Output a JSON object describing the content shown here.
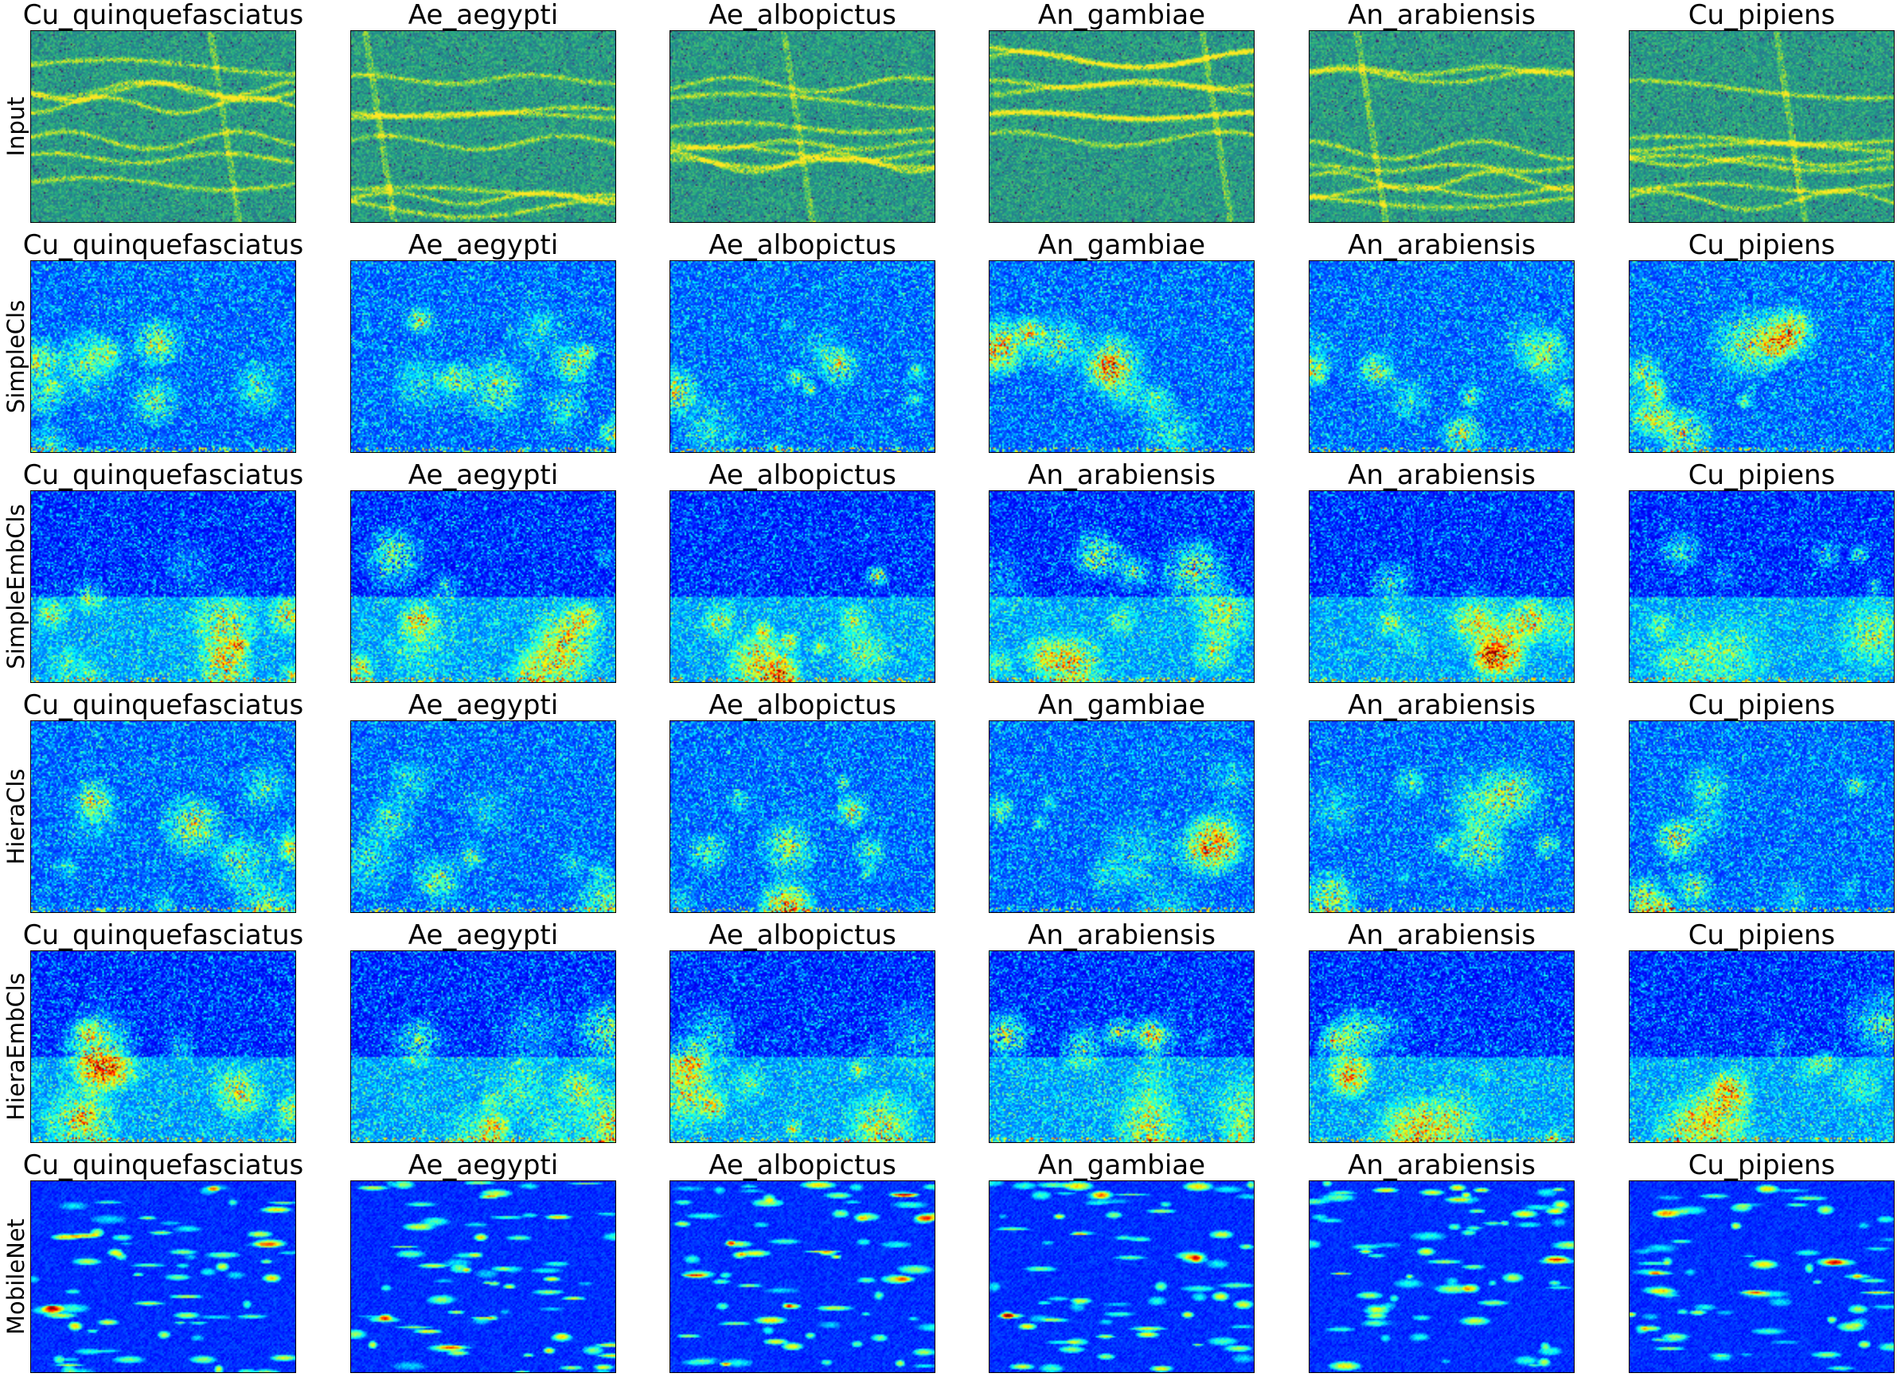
{
  "figure": {
    "rows": [
      {
        "label": "Input",
        "style": "spectrogram",
        "titles": [
          "Cu_quinquefasciatus",
          "Ae_aegypti",
          "Ae_albopictus",
          "An_gambiae",
          "An_arabiensis",
          "Cu_pipiens"
        ]
      },
      {
        "label": "SimpleCls",
        "style": "saliency",
        "titles": [
          "Cu_quinquefasciatus",
          "Ae_aegypti",
          "Ae_albopictus",
          "An_gambiae",
          "An_arabiensis",
          "Cu_pipiens"
        ]
      },
      {
        "label": "SimpleEmbCls",
        "style": "saliency-lower",
        "titles": [
          "Cu_quinquefasciatus",
          "Ae_aegypti",
          "Ae_albopictus",
          "An_arabiensis",
          "An_arabiensis",
          "Cu_pipiens"
        ]
      },
      {
        "label": "HieraCls",
        "style": "saliency",
        "titles": [
          "Cu_quinquefasciatus",
          "Ae_aegypti",
          "Ae_albopictus",
          "An_gambiae",
          "An_arabiensis",
          "Cu_pipiens"
        ]
      },
      {
        "label": "HieraEmbCls",
        "style": "saliency-lower",
        "titles": [
          "Cu_quinquefasciatus",
          "Ae_aegypti",
          "Ae_albopictus",
          "An_arabiensis",
          "An_arabiensis",
          "Cu_pipiens"
        ]
      },
      {
        "label": "MobileNet",
        "style": "blobs",
        "titles": [
          "Cu_quinquefasciatus",
          "Ae_aegypti",
          "Ae_albopictus",
          "An_gambiae",
          "An_arabiensis",
          "Cu_pipiens"
        ]
      }
    ],
    "colormaps": {
      "spectrogram": "viridis",
      "saliency": "jet"
    }
  }
}
